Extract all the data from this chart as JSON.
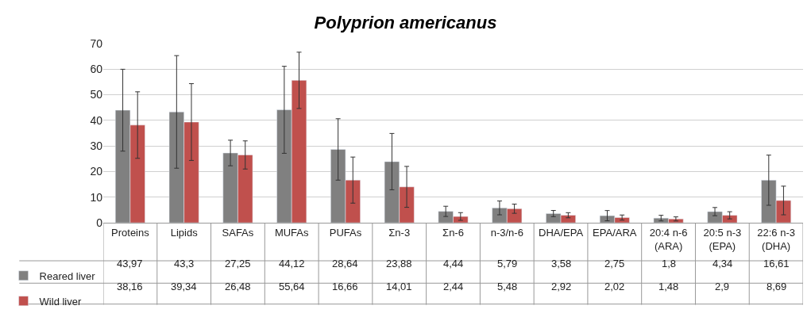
{
  "chart_data": {
    "type": "bar",
    "title": "Polyprion americanus",
    "categories": [
      "Proteins",
      "Lipids",
      "SAFAs",
      "MUFAs",
      "PUFAs",
      "Σn-3",
      "Σn-6",
      "n-3/n-6",
      "DHA/EPA",
      "EPA/ARA",
      "20:4 n-6 (ARA)",
      "20:5 n-3 (EPA)",
      "22:6 n-3 (DHA)"
    ],
    "series": [
      {
        "name": "Reared liver",
        "color": "#808080",
        "values": [
          43.97,
          43.3,
          27.25,
          44.12,
          28.64,
          23.88,
          4.44,
          5.79,
          3.58,
          2.75,
          1.8,
          4.34,
          16.61
        ],
        "errors": [
          16,
          22,
          5,
          17,
          12,
          11,
          2,
          2.7,
          1.2,
          2,
          1.1,
          1.6,
          9.8
        ],
        "value_labels": [
          "43,97",
          "43,3",
          "27,25",
          "44,12",
          "28,64",
          "23,88",
          "4,44",
          "5,79",
          "3,58",
          "2,75",
          "1,8",
          "4,34",
          "16,61"
        ]
      },
      {
        "name": "Wild liver",
        "color": "#c0504d",
        "values": [
          38.16,
          39.34,
          26.48,
          55.64,
          16.66,
          14.01,
          2.44,
          5.48,
          2.92,
          2.02,
          1.48,
          2.9,
          8.69
        ],
        "errors": [
          13,
          15,
          5.5,
          11,
          9,
          8,
          1.5,
          1.8,
          1,
          1,
          0.8,
          1.4,
          5.6
        ],
        "value_labels": [
          "38,16",
          "39,34",
          "26,48",
          "55,64",
          "16,66",
          "14,01",
          "2,44",
          "5,48",
          "2,92",
          "2,02",
          "1,48",
          "2,9",
          "8,69"
        ]
      }
    ],
    "ylim": [
      0,
      70
    ],
    "yticks": [
      0,
      10,
      20,
      30,
      40,
      50,
      60,
      70
    ],
    "grid": "y",
    "legend": "bottom left"
  }
}
